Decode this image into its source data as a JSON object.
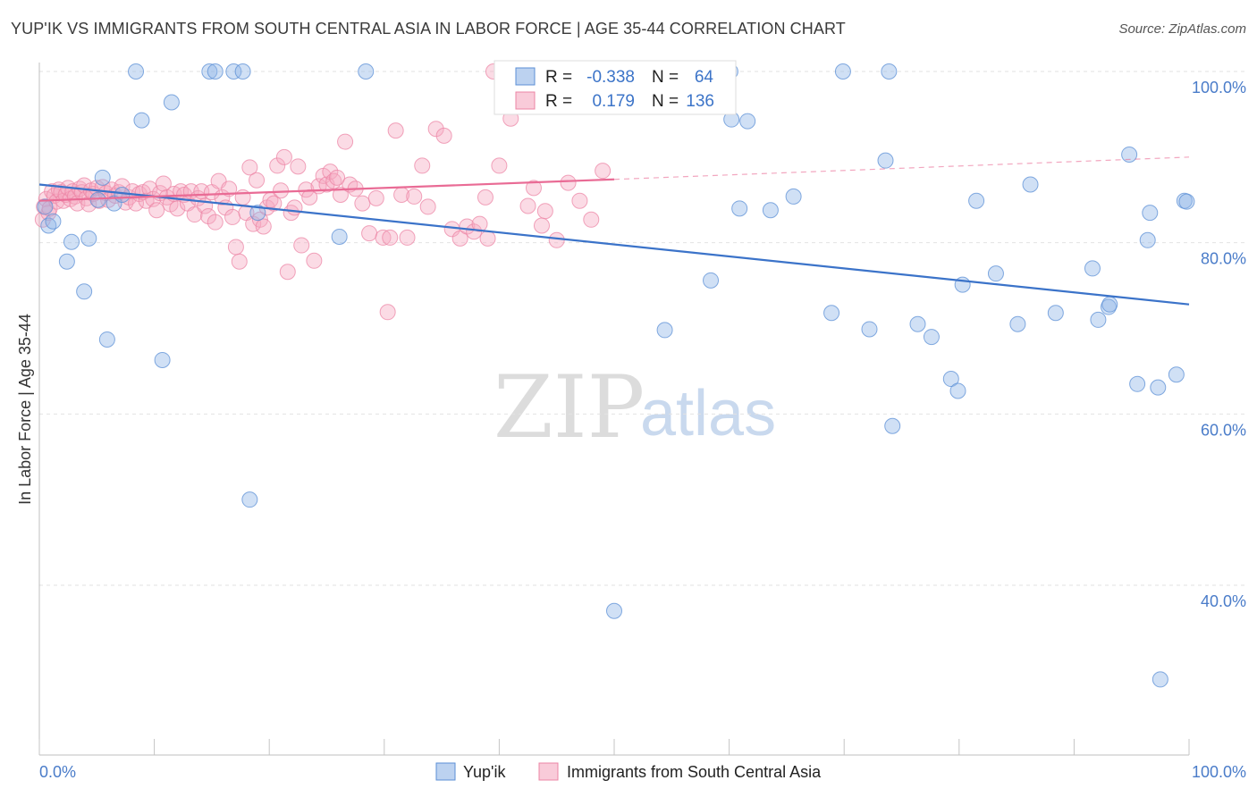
{
  "title": "YUP'IK VS IMMIGRANTS FROM SOUTH CENTRAL ASIA IN LABOR FORCE | AGE 35-44 CORRELATION CHART",
  "source": "Source: ZipAtlas.com",
  "watermark": {
    "zip": "ZIP",
    "atlas": "atlas"
  },
  "stats": {
    "r_label": "R =",
    "n_label": "N =",
    "rows": [
      {
        "r": "-0.338",
        "n": "64",
        "color": "#8fb4e6"
      },
      {
        "r": "0.179",
        "n": "136",
        "color": "#f5a9c0"
      }
    ]
  },
  "chart_data": {
    "type": "scatter",
    "title": "YUP'IK VS IMMIGRANTS FROM SOUTH CENTRAL ASIA IN LABOR FORCE | AGE 35-44 CORRELATION CHART",
    "xlabel": "",
    "ylabel": "In Labor Force | Age 35-44",
    "xlim": [
      0,
      100
    ],
    "ylim": [
      20,
      102
    ],
    "x_tick_labels": [
      "0.0%",
      "100.0%"
    ],
    "y_ticks": [
      40,
      60,
      80,
      100
    ],
    "y_tick_labels": [
      "40.0%",
      "60.0%",
      "80.0%",
      "100.0%"
    ],
    "grid": true,
    "legend_position": "bottom-center",
    "series": [
      {
        "name": "Yup'ik",
        "color": "#8fb4e6",
        "edge": "#5b8fd6",
        "trend": {
          "x": [
            0,
            100
          ],
          "y": [
            86.8,
            72.8
          ],
          "color": "#3b73c9"
        },
        "points": [
          [
            0.5,
            84.2
          ],
          [
            0.8,
            82.0
          ],
          [
            1.2,
            82.5
          ],
          [
            2.4,
            77.8
          ],
          [
            2.8,
            80.1
          ],
          [
            3.9,
            74.3
          ],
          [
            4.3,
            80.5
          ],
          [
            5.1,
            85.0
          ],
          [
            5.5,
            87.6
          ],
          [
            5.9,
            68.7
          ],
          [
            6.5,
            84.6
          ],
          [
            7.2,
            85.6
          ],
          [
            8.4,
            100.0
          ],
          [
            8.9,
            94.3
          ],
          [
            10.7,
            66.3
          ],
          [
            11.5,
            96.4
          ],
          [
            14.8,
            100.0
          ],
          [
            15.3,
            100.0
          ],
          [
            16.9,
            100.0
          ],
          [
            17.7,
            100.0
          ],
          [
            18.3,
            50.0
          ],
          [
            19.0,
            83.5
          ],
          [
            26.1,
            80.7
          ],
          [
            28.4,
            100.0
          ],
          [
            50.0,
            37.0
          ],
          [
            54.4,
            69.8
          ],
          [
            58.4,
            75.6
          ],
          [
            60.1,
            100.0
          ],
          [
            60.2,
            94.4
          ],
          [
            60.9,
            84.0
          ],
          [
            61.6,
            94.2
          ],
          [
            63.6,
            83.8
          ],
          [
            65.6,
            85.4
          ],
          [
            68.9,
            71.8
          ],
          [
            69.9,
            100.0
          ],
          [
            72.2,
            69.9
          ],
          [
            73.6,
            89.6
          ],
          [
            73.9,
            100.0
          ],
          [
            74.2,
            58.6
          ],
          [
            76.4,
            70.5
          ],
          [
            77.6,
            69.0
          ],
          [
            79.3,
            64.1
          ],
          [
            79.9,
            62.7
          ],
          [
            80.3,
            75.1
          ],
          [
            81.5,
            84.9
          ],
          [
            83.2,
            76.4
          ],
          [
            85.1,
            70.5
          ],
          [
            86.2,
            86.8
          ],
          [
            88.4,
            71.8
          ],
          [
            91.6,
            77.0
          ],
          [
            92.1,
            71.0
          ],
          [
            93.0,
            72.5
          ],
          [
            93.1,
            72.8
          ],
          [
            94.8,
            90.3
          ],
          [
            95.5,
            63.5
          ],
          [
            96.4,
            80.3
          ],
          [
            96.6,
            83.5
          ],
          [
            97.3,
            63.1
          ],
          [
            97.5,
            29.0
          ],
          [
            98.9,
            64.6
          ],
          [
            99.6,
            84.9
          ],
          [
            99.8,
            84.8
          ]
        ]
      },
      {
        "name": "Immigrants from South Central Asia",
        "color": "#f5a9c0",
        "edge": "#ec85a5",
        "trend": {
          "x": [
            0,
            50
          ],
          "y": [
            84.9,
            87.4
          ],
          "color": "#e96b95",
          "dashed_extension": {
            "x": [
              50,
              100
            ],
            "y": [
              87.4,
              90.0
            ]
          }
        },
        "points": [
          [
            0.3,
            82.7
          ],
          [
            0.4,
            84.2
          ],
          [
            0.6,
            85.1
          ],
          [
            0.8,
            83.5
          ],
          [
            0.9,
            84.0
          ],
          [
            1.1,
            86.0
          ],
          [
            1.3,
            85.5
          ],
          [
            1.5,
            84.8
          ],
          [
            1.7,
            86.2
          ],
          [
            1.9,
            85.9
          ],
          [
            2.1,
            84.9
          ],
          [
            2.3,
            85.6
          ],
          [
            2.5,
            86.4
          ],
          [
            2.7,
            85.1
          ],
          [
            2.9,
            86.0
          ],
          [
            3.1,
            85.4
          ],
          [
            3.3,
            84.6
          ],
          [
            3.5,
            86.3
          ],
          [
            3.7,
            85.9
          ],
          [
            3.9,
            86.7
          ],
          [
            4.1,
            85.2
          ],
          [
            4.3,
            84.5
          ],
          [
            4.5,
            86.1
          ],
          [
            4.7,
            85.7
          ],
          [
            5.0,
            86.4
          ],
          [
            5.2,
            84.9
          ],
          [
            5.5,
            86.5
          ],
          [
            5.8,
            85.8
          ],
          [
            6.0,
            85.0
          ],
          [
            6.3,
            86.2
          ],
          [
            6.6,
            85.5
          ],
          [
            6.9,
            85.9
          ],
          [
            7.2,
            86.6
          ],
          [
            7.5,
            84.7
          ],
          [
            7.8,
            85.3
          ],
          [
            8.1,
            86.0
          ],
          [
            8.4,
            84.6
          ],
          [
            8.7,
            85.7
          ],
          [
            9.0,
            85.9
          ],
          [
            9.3,
            84.9
          ],
          [
            9.6,
            86.3
          ],
          [
            9.9,
            85.1
          ],
          [
            10.2,
            83.8
          ],
          [
            10.5,
            85.8
          ],
          [
            10.8,
            86.9
          ],
          [
            11.1,
            85.3
          ],
          [
            11.4,
            84.5
          ],
          [
            11.7,
            85.7
          ],
          [
            12.0,
            84.0
          ],
          [
            12.3,
            86.0
          ],
          [
            12.6,
            85.6
          ],
          [
            12.9,
            84.6
          ],
          [
            13.2,
            86.0
          ],
          [
            13.5,
            83.3
          ],
          [
            13.8,
            85.2
          ],
          [
            14.1,
            86.0
          ],
          [
            14.4,
            84.3
          ],
          [
            14.7,
            83.1
          ],
          [
            15.0,
            85.9
          ],
          [
            15.3,
            82.4
          ],
          [
            15.6,
            87.2
          ],
          [
            15.9,
            85.3
          ],
          [
            16.2,
            84.1
          ],
          [
            16.5,
            86.3
          ],
          [
            16.8,
            83.0
          ],
          [
            17.1,
            79.5
          ],
          [
            17.4,
            77.8
          ],
          [
            17.7,
            85.3
          ],
          [
            18.0,
            83.5
          ],
          [
            18.3,
            88.8
          ],
          [
            18.6,
            82.2
          ],
          [
            18.9,
            87.3
          ],
          [
            19.2,
            82.7
          ],
          [
            19.5,
            81.9
          ],
          [
            19.8,
            84.1
          ],
          [
            20.1,
            85.0
          ],
          [
            20.4,
            84.6
          ],
          [
            20.7,
            89.0
          ],
          [
            21.0,
            86.1
          ],
          [
            21.3,
            90.0
          ],
          [
            21.6,
            76.6
          ],
          [
            21.9,
            83.5
          ],
          [
            22.2,
            84.1
          ],
          [
            22.5,
            88.9
          ],
          [
            22.8,
            79.7
          ],
          [
            23.2,
            86.2
          ],
          [
            23.5,
            85.3
          ],
          [
            23.9,
            77.9
          ],
          [
            24.3,
            86.6
          ],
          [
            24.7,
            87.8
          ],
          [
            25.0,
            86.8
          ],
          [
            25.3,
            88.3
          ],
          [
            25.6,
            87.2
          ],
          [
            25.9,
            87.6
          ],
          [
            26.2,
            85.6
          ],
          [
            26.6,
            91.8
          ],
          [
            27.0,
            86.8
          ],
          [
            27.5,
            86.3
          ],
          [
            28.1,
            84.6
          ],
          [
            28.7,
            81.1
          ],
          [
            29.3,
            85.2
          ],
          [
            29.9,
            80.6
          ],
          [
            30.3,
            71.9
          ],
          [
            30.5,
            80.6
          ],
          [
            31.0,
            93.1
          ],
          [
            31.5,
            85.6
          ],
          [
            32.0,
            80.6
          ],
          [
            32.6,
            85.4
          ],
          [
            33.3,
            89.0
          ],
          [
            33.8,
            84.2
          ],
          [
            34.5,
            93.3
          ],
          [
            35.2,
            92.5
          ],
          [
            35.9,
            81.6
          ],
          [
            36.6,
            80.5
          ],
          [
            37.2,
            81.9
          ],
          [
            37.8,
            81.3
          ],
          [
            38.3,
            82.2
          ],
          [
            38.8,
            85.3
          ],
          [
            39.0,
            80.5
          ],
          [
            39.5,
            100.0
          ],
          [
            40.0,
            89.0
          ],
          [
            41.0,
            94.5
          ],
          [
            42.0,
            97.8
          ],
          [
            42.5,
            84.3
          ],
          [
            43.0,
            86.4
          ],
          [
            44.0,
            83.7
          ],
          [
            45.0,
            80.3
          ],
          [
            46.0,
            87.0
          ],
          [
            47.0,
            84.9
          ],
          [
            48.0,
            82.7
          ],
          [
            49.0,
            88.4
          ],
          [
            43.7,
            82.0
          ]
        ]
      }
    ]
  }
}
